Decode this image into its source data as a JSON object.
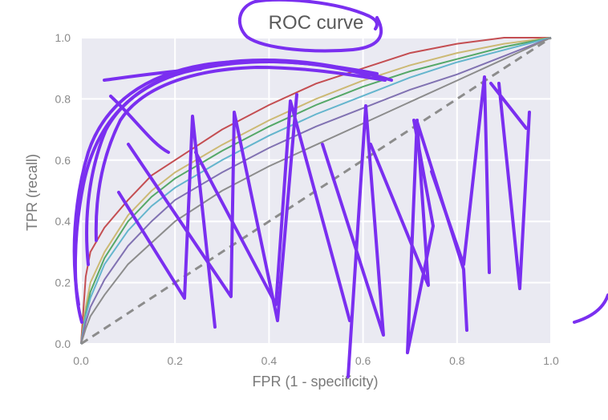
{
  "chart_data": {
    "type": "line",
    "title": "ROC curve",
    "xlabel": "FPR (1 - specificity)",
    "ylabel": "TPR (recall)",
    "xlim": [
      0,
      1
    ],
    "ylim": [
      0,
      1
    ],
    "xticks": [
      "0.0",
      "0.2",
      "0.4",
      "0.6",
      "0.8",
      "1.0"
    ],
    "yticks": [
      "0.0",
      "0.2",
      "0.4",
      "0.6",
      "0.8",
      "1.0"
    ],
    "grid": true,
    "legend": "none",
    "colors": {
      "background": "#eaeaf2",
      "grid": "#ffffff",
      "diagonal": "#8c8c8c",
      "annotation": "#7a2ff0"
    },
    "series": [
      {
        "color": "#c44e52",
        "x": [
          0.0,
          0.01,
          0.02,
          0.05,
          0.1,
          0.15,
          0.2,
          0.3,
          0.4,
          0.5,
          0.6,
          0.7,
          0.8,
          0.9,
          1.0
        ],
        "y": [
          0.0,
          0.22,
          0.3,
          0.38,
          0.47,
          0.55,
          0.6,
          0.7,
          0.78,
          0.85,
          0.9,
          0.95,
          0.98,
          1.0,
          1.0
        ]
      },
      {
        "color": "#ccb974",
        "x": [
          0.0,
          0.01,
          0.02,
          0.05,
          0.1,
          0.15,
          0.2,
          0.3,
          0.4,
          0.5,
          0.6,
          0.7,
          0.8,
          0.9,
          1.0
        ],
        "y": [
          0.0,
          0.12,
          0.2,
          0.3,
          0.42,
          0.5,
          0.56,
          0.65,
          0.73,
          0.8,
          0.86,
          0.91,
          0.95,
          0.98,
          1.0
        ]
      },
      {
        "color": "#55a868",
        "x": [
          0.0,
          0.01,
          0.02,
          0.05,
          0.1,
          0.15,
          0.2,
          0.3,
          0.4,
          0.5,
          0.6,
          0.7,
          0.8,
          0.9,
          1.0
        ],
        "y": [
          0.0,
          0.1,
          0.17,
          0.28,
          0.4,
          0.48,
          0.54,
          0.63,
          0.71,
          0.78,
          0.84,
          0.89,
          0.93,
          0.97,
          1.0
        ]
      },
      {
        "color": "#64b5cd",
        "x": [
          0.0,
          0.01,
          0.02,
          0.05,
          0.1,
          0.15,
          0.2,
          0.3,
          0.4,
          0.5,
          0.6,
          0.7,
          0.8,
          0.9,
          1.0
        ],
        "y": [
          0.0,
          0.09,
          0.15,
          0.26,
          0.37,
          0.45,
          0.51,
          0.6,
          0.68,
          0.75,
          0.81,
          0.87,
          0.92,
          0.96,
          1.0
        ]
      },
      {
        "color": "#8172b2",
        "x": [
          0.0,
          0.01,
          0.02,
          0.05,
          0.1,
          0.15,
          0.2,
          0.3,
          0.4,
          0.5,
          0.6,
          0.7,
          0.8,
          0.9,
          1.0
        ],
        "y": [
          0.0,
          0.07,
          0.12,
          0.21,
          0.32,
          0.4,
          0.47,
          0.56,
          0.64,
          0.71,
          0.77,
          0.83,
          0.88,
          0.94,
          1.0
        ]
      },
      {
        "color": "#8c8c8c",
        "x": [
          0.0,
          0.01,
          0.02,
          0.05,
          0.1,
          0.15,
          0.2,
          0.3,
          0.4,
          0.5,
          0.6,
          0.7,
          0.8,
          0.9,
          1.0
        ],
        "y": [
          0.0,
          0.05,
          0.09,
          0.16,
          0.26,
          0.33,
          0.4,
          0.5,
          0.58,
          0.65,
          0.72,
          0.79,
          0.86,
          0.93,
          1.0
        ]
      }
    ]
  }
}
